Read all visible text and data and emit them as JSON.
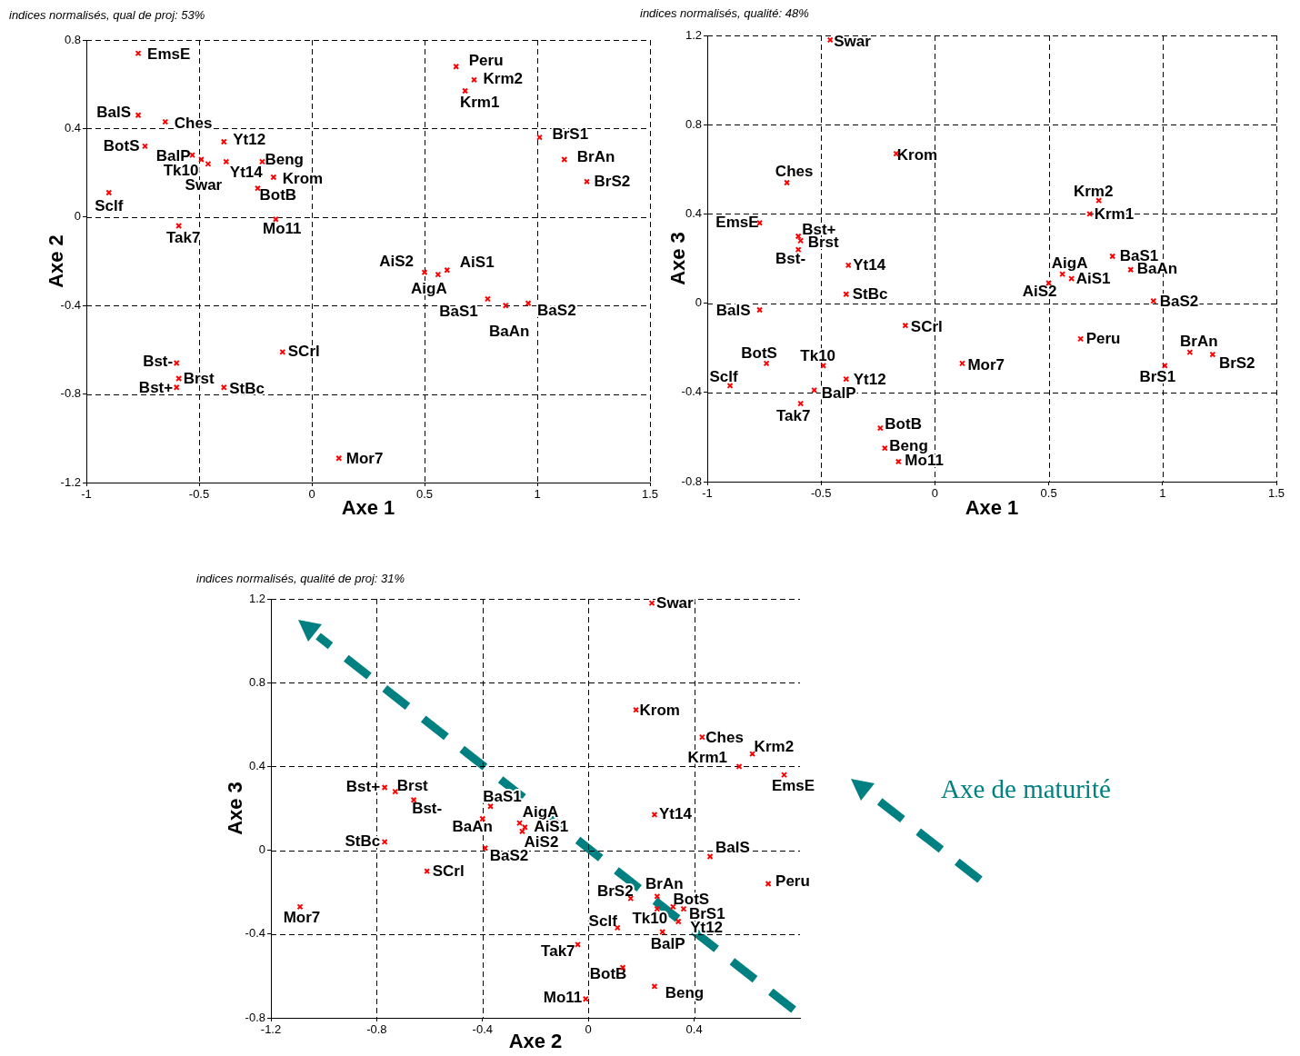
{
  "chart_data": [
    {
      "type": "scatter",
      "title": "indices normalisés, qual de proj: 53%",
      "xlabel": "Axe 1",
      "ylabel": "Axe 2",
      "color": "#ff0000",
      "marker": "cross",
      "grid": true,
      "xlim": [
        -1,
        1.5
      ],
      "xticks": [
        -1,
        -0.5,
        0,
        0.5,
        1,
        1.5
      ],
      "ylim": [
        -1.2,
        0.8
      ],
      "yticks": [
        -1.2,
        -0.8,
        -0.4,
        0,
        0.4,
        0.8
      ],
      "x": [
        -0.77,
        -0.77,
        -0.65,
        -0.39,
        -0.74,
        -0.53,
        -0.49,
        -0.46,
        -0.38,
        -0.22,
        -0.17,
        -0.24,
        -0.9,
        -0.16,
        -0.59,
        -0.13,
        -0.6,
        -0.59,
        -0.6,
        -0.39,
        0.12,
        0.64,
        0.72,
        0.68,
        1.01,
        1.12,
        1.22,
        0.5,
        0.56,
        0.6,
        0.78,
        0.86,
        0.96
      ],
      "values": [
        0.74,
        0.46,
        0.43,
        0.34,
        0.32,
        0.28,
        0.26,
        0.24,
        0.25,
        0.25,
        0.18,
        0.13,
        0.11,
        -0.01,
        -0.04,
        -0.61,
        -0.66,
        -0.73,
        -0.77,
        -0.77,
        -1.09,
        0.68,
        0.62,
        0.57,
        0.36,
        0.26,
        0.16,
        -0.25,
        -0.26,
        -0.24,
        -0.37,
        -0.4,
        -0.39
      ],
      "annotations": [
        {
          "text": "EmsE",
          "x": -0.77,
          "y": 0.74
        },
        {
          "text": "BalS",
          "x": -0.77,
          "y": 0.46
        },
        {
          "text": "Ches",
          "x": -0.65,
          "y": 0.43
        },
        {
          "text": "Yt12",
          "x": -0.39,
          "y": 0.34
        },
        {
          "text": "BotS",
          "x": -0.74,
          "y": 0.32
        },
        {
          "text": "BalP",
          "x": -0.53,
          "y": 0.28
        },
        {
          "text": "Tk10",
          "x": -0.49,
          "y": 0.26
        },
        {
          "text": "Swar",
          "x": -0.46,
          "y": 0.24
        },
        {
          "text": "Yt14",
          "x": -0.38,
          "y": 0.25
        },
        {
          "text": "Beng",
          "x": -0.22,
          "y": 0.25
        },
        {
          "text": "Krom",
          "x": -0.17,
          "y": 0.18
        },
        {
          "text": "BotB",
          "x": -0.24,
          "y": 0.13
        },
        {
          "text": "Sclf",
          "x": -0.9,
          "y": 0.11
        },
        {
          "text": "Mo11",
          "x": -0.16,
          "y": -0.01
        },
        {
          "text": "Tak7",
          "x": -0.59,
          "y": -0.04
        },
        {
          "text": "SCrl",
          "x": -0.13,
          "y": -0.61
        },
        {
          "text": "Bst-",
          "x": -0.6,
          "y": -0.66
        },
        {
          "text": "Brst",
          "x": -0.59,
          "y": -0.73
        },
        {
          "text": "Bst+",
          "x": -0.6,
          "y": -0.77
        },
        {
          "text": "StBc",
          "x": -0.39,
          "y": -0.77
        },
        {
          "text": "Mor7",
          "x": 0.12,
          "y": -1.09
        },
        {
          "text": "Peru",
          "x": 0.64,
          "y": 0.68
        },
        {
          "text": "Krm2",
          "x": 0.72,
          "y": 0.62
        },
        {
          "text": "Krm1",
          "x": 0.68,
          "y": 0.57
        },
        {
          "text": "BrS1",
          "x": 1.01,
          "y": 0.36
        },
        {
          "text": "BrAn",
          "x": 1.12,
          "y": 0.26
        },
        {
          "text": "BrS2",
          "x": 1.22,
          "y": 0.16
        },
        {
          "text": "AiS2",
          "x": 0.5,
          "y": -0.25
        },
        {
          "text": "AigA",
          "x": 0.56,
          "y": -0.26
        },
        {
          "text": "AiS1",
          "x": 0.6,
          "y": -0.24
        },
        {
          "text": "BaS1",
          "x": 0.78,
          "y": -0.37
        },
        {
          "text": "BaAn",
          "x": 0.86,
          "y": -0.4
        },
        {
          "text": "BaS2",
          "x": 0.96,
          "y": -0.39
        }
      ]
    },
    {
      "type": "scatter",
      "title": "indices normalisés, qualité: 48%",
      "xlabel": "Axe 1",
      "ylabel": "Axe 3",
      "color": "#ff0000",
      "marker": "cross",
      "grid": true,
      "xlim": [
        -1,
        1.5
      ],
      "xticks": [
        -1,
        -0.5,
        0,
        0.5,
        1,
        1.5
      ],
      "ylim": [
        -0.8,
        1.2
      ],
      "yticks": [
        -0.8,
        -0.4,
        0,
        0.4,
        0.8,
        1.2
      ],
      "x": [
        -0.77,
        -0.77,
        -0.65,
        -0.39,
        -0.74,
        -0.53,
        -0.49,
        -0.46,
        -0.38,
        -0.22,
        -0.17,
        -0.24,
        -0.9,
        -0.16,
        -0.59,
        -0.13,
        -0.6,
        -0.59,
        -0.6,
        -0.39,
        0.12,
        0.64,
        0.72,
        0.68,
        1.01,
        1.12,
        1.22,
        0.5,
        0.56,
        0.6,
        0.78,
        0.86,
        0.96
      ],
      "values": [
        0.36,
        -0.03,
        0.54,
        -0.34,
        -0.27,
        -0.39,
        -0.28,
        1.18,
        0.17,
        -0.65,
        0.67,
        -0.56,
        -0.37,
        -0.71,
        -0.45,
        -0.1,
        0.24,
        0.28,
        0.3,
        0.04,
        -0.27,
        -0.16,
        0.46,
        0.4,
        -0.28,
        -0.22,
        -0.23,
        0.09,
        0.13,
        0.11,
        0.21,
        0.15,
        0.01
      ],
      "annotations": [
        {
          "text": "EmsE",
          "x": -0.77,
          "y": 0.36
        },
        {
          "text": "BalS",
          "x": -0.77,
          "y": -0.03
        },
        {
          "text": "Ches",
          "x": -0.65,
          "y": 0.54
        },
        {
          "text": "Yt12",
          "x": -0.39,
          "y": -0.34
        },
        {
          "text": "BotS",
          "x": -0.74,
          "y": -0.27
        },
        {
          "text": "BalP",
          "x": -0.53,
          "y": -0.39
        },
        {
          "text": "Tk10",
          "x": -0.49,
          "y": -0.28
        },
        {
          "text": "Swar",
          "x": -0.46,
          "y": 1.18
        },
        {
          "text": "Yt14",
          "x": -0.38,
          "y": 0.17
        },
        {
          "text": "Beng",
          "x": -0.22,
          "y": -0.65
        },
        {
          "text": "Krom",
          "x": -0.17,
          "y": 0.67
        },
        {
          "text": "BotB",
          "x": -0.24,
          "y": -0.56
        },
        {
          "text": "Sclf",
          "x": -0.9,
          "y": -0.37
        },
        {
          "text": "Mo11",
          "x": -0.16,
          "y": -0.71
        },
        {
          "text": "Tak7",
          "x": -0.59,
          "y": -0.45
        },
        {
          "text": "SCrl",
          "x": -0.13,
          "y": -0.1
        },
        {
          "text": "Bst-",
          "x": -0.6,
          "y": 0.24
        },
        {
          "text": "Brst",
          "x": -0.59,
          "y": 0.28
        },
        {
          "text": "Bst+",
          "x": -0.6,
          "y": 0.3
        },
        {
          "text": "StBc",
          "x": -0.39,
          "y": 0.04
        },
        {
          "text": "Mor7",
          "x": 0.12,
          "y": -0.27
        },
        {
          "text": "Peru",
          "x": 0.64,
          "y": -0.16
        },
        {
          "text": "Krm2",
          "x": 0.72,
          "y": 0.46
        },
        {
          "text": "Krm1",
          "x": 0.68,
          "y": 0.4
        },
        {
          "text": "BrS1",
          "x": 1.01,
          "y": -0.28
        },
        {
          "text": "BrAn",
          "x": 1.12,
          "y": -0.22
        },
        {
          "text": "BrS2",
          "x": 1.22,
          "y": -0.23
        },
        {
          "text": "AiS2",
          "x": 0.5,
          "y": 0.09
        },
        {
          "text": "AigA",
          "x": 0.56,
          "y": 0.13
        },
        {
          "text": "AiS1",
          "x": 0.6,
          "y": 0.11
        },
        {
          "text": "BaS1",
          "x": 0.78,
          "y": 0.21
        },
        {
          "text": "BaAn",
          "x": 0.86,
          "y": 0.15
        },
        {
          "text": "BaS2",
          "x": 0.96,
          "y": 0.01
        }
      ]
    },
    {
      "type": "scatter",
      "title": "indices normalisés, qualité de proj: 31%",
      "xlabel": "Axe 2",
      "ylabel": "Axe 3",
      "color": "#ff0000",
      "marker": "cross",
      "grid": true,
      "xlim": [
        -1.2,
        0.8
      ],
      "xticks": [
        -1.2,
        -0.8,
        -0.4,
        0,
        0.4
      ],
      "ylim": [
        -0.8,
        1.2
      ],
      "yticks": [
        -0.8,
        -0.4,
        0,
        0.4,
        0.8,
        1.2
      ],
      "x": [
        0.74,
        0.46,
        0.43,
        0.34,
        0.32,
        0.28,
        0.26,
        0.24,
        0.25,
        0.25,
        0.18,
        0.13,
        0.11,
        -0.01,
        -0.04,
        -0.61,
        -0.66,
        -0.73,
        -0.77,
        -0.77,
        -1.09,
        0.68,
        0.62,
        0.57,
        0.36,
        0.26,
        0.16,
        -0.25,
        -0.26,
        -0.24,
        -0.37,
        -0.4,
        -0.39
      ],
      "values": [
        0.36,
        -0.03,
        0.54,
        -0.34,
        -0.27,
        -0.39,
        -0.28,
        1.18,
        0.17,
        -0.65,
        0.67,
        -0.56,
        -0.37,
        -0.71,
        -0.45,
        -0.1,
        0.24,
        0.28,
        0.3,
        0.04,
        -0.27,
        -0.16,
        0.46,
        0.4,
        -0.28,
        -0.22,
        -0.23,
        0.09,
        0.13,
        0.11,
        0.21,
        0.15,
        0.01
      ],
      "annotations": [
        {
          "text": "EmsE",
          "x": 0.74,
          "y": 0.36
        },
        {
          "text": "BalS",
          "x": 0.46,
          "y": -0.03
        },
        {
          "text": "Ches",
          "x": 0.43,
          "y": 0.54
        },
        {
          "text": "Yt12",
          "x": 0.34,
          "y": -0.34
        },
        {
          "text": "BotS",
          "x": 0.32,
          "y": -0.27
        },
        {
          "text": "BalP",
          "x": 0.28,
          "y": -0.39
        },
        {
          "text": "Tk10",
          "x": 0.26,
          "y": -0.28
        },
        {
          "text": "Swar",
          "x": 0.24,
          "y": 1.18
        },
        {
          "text": "Yt14",
          "x": 0.25,
          "y": 0.17
        },
        {
          "text": "Beng",
          "x": 0.25,
          "y": -0.65
        },
        {
          "text": "Krom",
          "x": 0.18,
          "y": 0.67
        },
        {
          "text": "BotB",
          "x": 0.13,
          "y": -0.56
        },
        {
          "text": "Sclf",
          "x": 0.11,
          "y": -0.37
        },
        {
          "text": "Mo11",
          "x": -0.01,
          "y": -0.71
        },
        {
          "text": "Tak7",
          "x": -0.04,
          "y": -0.45
        },
        {
          "text": "SCrl",
          "x": -0.61,
          "y": -0.1
        },
        {
          "text": "Bst-",
          "x": -0.66,
          "y": 0.24
        },
        {
          "text": "Brst",
          "x": -0.73,
          "y": 0.28
        },
        {
          "text": "Bst+",
          "x": -0.77,
          "y": 0.3
        },
        {
          "text": "StBc",
          "x": -0.77,
          "y": 0.04
        },
        {
          "text": "Mor7",
          "x": -1.09,
          "y": -0.27
        },
        {
          "text": "Peru",
          "x": 0.68,
          "y": -0.16
        },
        {
          "text": "Krm2",
          "x": 0.62,
          "y": 0.46
        },
        {
          "text": "Krm1",
          "x": 0.57,
          "y": 0.4
        },
        {
          "text": "BrS1",
          "x": 0.36,
          "y": -0.28
        },
        {
          "text": "BrAn",
          "x": 0.26,
          "y": -0.22
        },
        {
          "text": "BrS2",
          "x": 0.16,
          "y": -0.23
        },
        {
          "text": "AiS2",
          "x": -0.25,
          "y": 0.09
        },
        {
          "text": "AigA",
          "x": -0.26,
          "y": 0.13
        },
        {
          "text": "AiS1",
          "x": -0.24,
          "y": 0.11
        },
        {
          "text": "BaS1",
          "x": -0.37,
          "y": 0.21
        },
        {
          "text": "BaAn",
          "x": -0.4,
          "y": 0.15
        },
        {
          "text": "BaS2",
          "x": -0.39,
          "y": 0.01
        },
        "Axe de maturité"
      ]
    }
  ]
}
